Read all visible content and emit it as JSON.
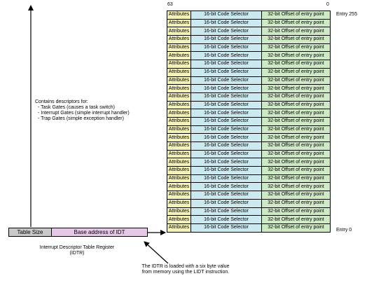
{
  "table": {
    "bit_high": "63",
    "bit_low": "0",
    "entry_top_label": "Entry 255",
    "entry_bottom_label": "Entry 0",
    "row_count": 27,
    "cells": {
      "attributes": "Attributes",
      "selector": "16-bit Code Selector",
      "offset": "32-bit Offset of entry point"
    },
    "colors": {
      "attributes": "#f3f2b8",
      "selector": "#cce9ef",
      "offset": "#cfe8c6"
    }
  },
  "descriptors_note": {
    "heading": "Contains descriptors for:",
    "items": [
      "- Task Gates (causes a task switch)",
      "- Interrupt Gates (simple interrupt handler)",
      "- Trap Gates (simple exception handler)"
    ]
  },
  "idtr": {
    "size_label": "Table Size",
    "base_label": "Base address of IDT",
    "caption_line1": "Interrupt Descriptor Table Register",
    "caption_line2": "(IDTR)",
    "colors": {
      "size": "#c9c9c9",
      "base": "#e6c8e6"
    }
  },
  "lidt_note": {
    "line1": "The IDTR is loaded with a six byte value",
    "line2": "from memory using the LIDT instruction."
  }
}
